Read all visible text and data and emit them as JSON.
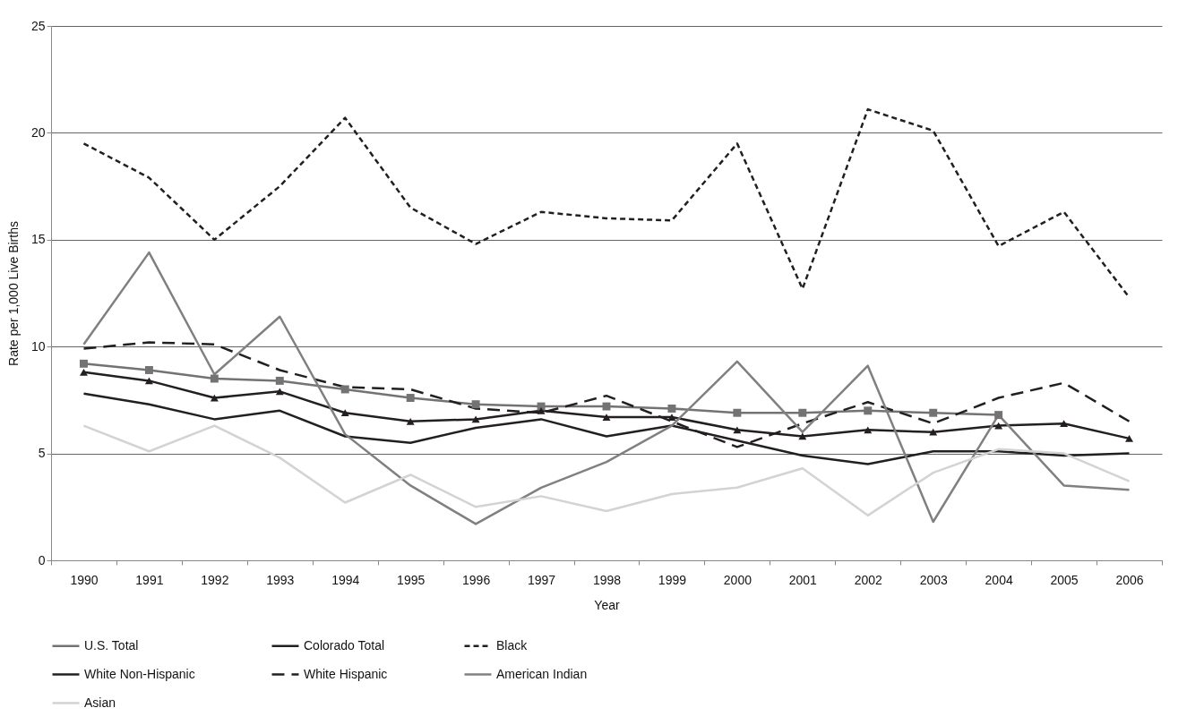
{
  "chart_data": {
    "type": "line",
    "xlabel": "Year",
    "ylabel": "Rate per 1,000 Live Births",
    "categories": [
      "1990",
      "1991",
      "1992",
      "1993",
      "1994",
      "1995",
      "1996",
      "1997",
      "1998",
      "1999",
      "2000",
      "2001",
      "2002",
      "2003",
      "2004",
      "2005",
      "2006"
    ],
    "ylim": [
      0,
      25
    ],
    "yticks": [
      0,
      5,
      10,
      15,
      20,
      25
    ],
    "grid": "y",
    "legend": "bottom",
    "series": [
      {
        "name": "U.S. Total",
        "color": "#737373",
        "marker": "square",
        "line_style": "solid",
        "values": [
          9.2,
          8.9,
          8.5,
          8.4,
          8.0,
          7.6,
          7.3,
          7.2,
          7.2,
          7.1,
          6.9,
          6.9,
          7.0,
          6.9,
          6.8,
          null,
          null
        ]
      },
      {
        "name": "Colorado Total",
        "color": "#231f20",
        "marker": "triangle",
        "line_style": "solid",
        "values": [
          8.8,
          8.4,
          7.6,
          7.9,
          6.9,
          6.5,
          6.6,
          7.0,
          6.7,
          6.7,
          6.1,
          5.8,
          6.1,
          6.0,
          6.3,
          6.4,
          5.7
        ]
      },
      {
        "name": "Black",
        "color": "#231f20",
        "marker": "none",
        "line_style": "dotted",
        "values": [
          19.5,
          17.9,
          15.0,
          17.5,
          20.7,
          16.5,
          14.8,
          16.3,
          16.0,
          15.9,
          19.5,
          12.7,
          21.1,
          20.1,
          14.7,
          16.3,
          12.3
        ]
      },
      {
        "name": "White Non-Hispanic",
        "color": "#231f20",
        "marker": "none",
        "line_style": "solid",
        "values": [
          7.8,
          7.3,
          6.6,
          7.0,
          5.8,
          5.5,
          6.2,
          6.6,
          5.8,
          6.3,
          5.6,
          4.9,
          4.5,
          5.1,
          5.1,
          4.9,
          5.0
        ]
      },
      {
        "name": "White Hispanic",
        "color": "#231f20",
        "marker": "none",
        "line_style": "dashed",
        "values": [
          9.9,
          10.2,
          10.1,
          8.9,
          8.1,
          8.0,
          7.1,
          6.9,
          7.7,
          6.5,
          5.3,
          6.4,
          7.4,
          6.4,
          7.6,
          8.3,
          6.5
        ]
      },
      {
        "name": "American Indian",
        "color": "#808080",
        "marker": "none",
        "line_style": "solid",
        "values": [
          10.1,
          14.4,
          8.7,
          11.4,
          5.9,
          3.5,
          1.7,
          3.4,
          4.6,
          6.3,
          9.3,
          6.0,
          9.1,
          1.8,
          6.8,
          3.5,
          3.3
        ]
      },
      {
        "name": "Asian",
        "color": "#d3d3d3",
        "marker": "none",
        "line_style": "solid",
        "values": [
          6.3,
          5.1,
          6.3,
          4.8,
          2.7,
          4.0,
          2.5,
          3.0,
          2.3,
          3.1,
          3.4,
          4.3,
          2.1,
          4.1,
          5.2,
          5.0,
          3.7
        ]
      }
    ]
  }
}
